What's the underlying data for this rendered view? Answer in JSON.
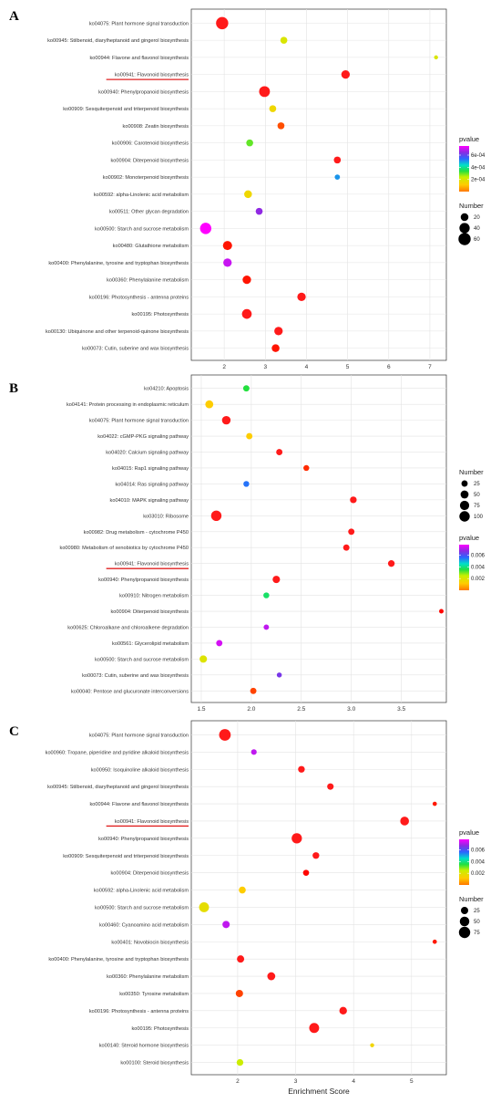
{
  "chart_data": [
    {
      "type": "scatter",
      "panel_label": "A",
      "xlabel": "",
      "ylabel": "",
      "xlim": [
        1.2,
        7.4
      ],
      "xticks": [
        2,
        3,
        4,
        5,
        6,
        7
      ],
      "highlighted_category": "ko00941: Flavonoid biosynthesis",
      "categories": [
        "ko04075: Plant hormone signal transduction",
        "ko00945: Stilbenoid, diarylheptanoid and gingerol biosynthesis",
        "ko00944: Flavone and flavonol biosynthesis",
        "ko00941: Flavonoid biosynthesis",
        "ko00940: Phenylpropanoid biosynthesis",
        "ko00909: Sesquiterpenoid and triterpenoid biosynthesis",
        "ko00908: Zeatin biosynthesis",
        "ko00906: Carotenoid biosynthesis",
        "ko00904: Diterpenoid biosynthesis",
        "ko00902: Monoterpenoid biosynthesis",
        "ko00592: alpha-Linolenic acid metabolism",
        "ko00511: Other glycan degradation",
        "ko00500: Starch and sucrose metabolism",
        "ko00480: Glutathione metabolism",
        "ko00400: Phenylalanine, tyrosine and tryptophan biosynthesis",
        "ko00360: Phenylalanine metabolism",
        "ko00196: Photosynthesis - antenna proteins",
        "ko00195: Photosynthesis",
        "ko00130: Ubiquinone and other terpenoid-quinone biosynthesis",
        "ko00073: Cutin, suberine and wax biosynthesis"
      ],
      "points": [
        {
          "x": 1.95,
          "number": 60,
          "pvalue": 0.0
        },
        {
          "x": 3.45,
          "number": 15,
          "pvalue": 0.0002
        },
        {
          "x": 7.15,
          "number": 3,
          "pvalue": 0.0002
        },
        {
          "x": 4.95,
          "number": 25,
          "pvalue": 0.0
        },
        {
          "x": 2.98,
          "number": 45,
          "pvalue": 0.0
        },
        {
          "x": 3.18,
          "number": 15,
          "pvalue": 0.00015
        },
        {
          "x": 3.38,
          "number": 15,
          "pvalue": 8e-05
        },
        {
          "x": 2.62,
          "number": 15,
          "pvalue": 0.0003
        },
        {
          "x": 4.75,
          "number": 15,
          "pvalue": 0.0
        },
        {
          "x": 4.75,
          "number": 7,
          "pvalue": 0.0005
        },
        {
          "x": 2.58,
          "number": 20,
          "pvalue": 0.00015
        },
        {
          "x": 2.85,
          "number": 15,
          "pvalue": 0.00065
        },
        {
          "x": 1.55,
          "number": 50,
          "pvalue": 0.00075
        },
        {
          "x": 2.08,
          "number": 30,
          "pvalue": 5e-05
        },
        {
          "x": 2.08,
          "number": 25,
          "pvalue": 0.0007
        },
        {
          "x": 2.55,
          "number": 25,
          "pvalue": 5e-05
        },
        {
          "x": 3.88,
          "number": 25,
          "pvalue": 0.0
        },
        {
          "x": 2.55,
          "number": 35,
          "pvalue": 0.0
        },
        {
          "x": 3.32,
          "number": 25,
          "pvalue": 0.0
        },
        {
          "x": 3.25,
          "number": 20,
          "pvalue": 5e-05
        }
      ],
      "color_legend": {
        "title": "pvalue",
        "ticks": [
          "6e-04",
          "4e-04",
          "2e-04"
        ],
        "tick_values": [
          0.0006,
          0.0004,
          0.0002
        ],
        "min": 0,
        "max": 0.00075
      },
      "size_legend": {
        "title": "Number",
        "labels": [
          "20",
          "40",
          "60"
        ],
        "values": [
          20,
          40,
          60
        ]
      }
    },
    {
      "type": "scatter",
      "panel_label": "B",
      "xlabel": "",
      "ylabel": "",
      "xlim": [
        1.4,
        3.95
      ],
      "xticks": [
        1.5,
        2.0,
        2.5,
        3.0,
        3.5
      ],
      "xtick_labels": [
        "1.5",
        "2.0",
        "2.5",
        "3.0",
        "3.5"
      ],
      "highlighted_category": "ko00941: Flavonoid biosynthesis",
      "categories": [
        "ko04210: Apoptosis",
        "ko04141: Protein processing in endoplasmic reticulum",
        "ko04075: Plant hormone signal transduction",
        "ko04022: cGMP-PKG signaling pathway",
        "ko04020: Calcium signaling pathway",
        "ko04015: Rap1 signaling pathway",
        "ko04014: Ras signaling pathway",
        "ko04010: MAPK signaling pathway",
        "ko03010: Ribosome",
        "ko00982: Drug metabolism - cytochrome P450",
        "ko00980: Metabolism of xenobiotics by cytochrome P450",
        "ko00941: Flavonoid biosynthesis",
        "ko00940: Phenylpropanoid biosynthesis",
        "ko00910: Nitrogen metabolism",
        "ko00904: Diterpenoid biosynthesis",
        "ko00625: Chloroalkane and chloroalkene degradation",
        "ko00561: Glycerolipid metabolism",
        "ko00500: Starch and sucrose metabolism",
        "ko00073: Cutin, suberine and wax biosynthesis",
        "ko00040: Pentose and glucuronate interconversions"
      ],
      "points": [
        {
          "x": 1.95,
          "number": 25,
          "pvalue": 0.0035
        },
        {
          "x": 1.58,
          "number": 50,
          "pvalue": 0.0012
        },
        {
          "x": 1.75,
          "number": 60,
          "pvalue": 0.0
        },
        {
          "x": 1.98,
          "number": 25,
          "pvalue": 0.0012
        },
        {
          "x": 2.28,
          "number": 25,
          "pvalue": 0.0002
        },
        {
          "x": 2.55,
          "number": 20,
          "pvalue": 0.0004
        },
        {
          "x": 1.95,
          "number": 20,
          "pvalue": 0.0055
        },
        {
          "x": 3.02,
          "number": 30,
          "pvalue": 0.0001
        },
        {
          "x": 1.65,
          "number": 100,
          "pvalue": 0.0
        },
        {
          "x": 3.0,
          "number": 25,
          "pvalue": 0.0001
        },
        {
          "x": 2.95,
          "number": 25,
          "pvalue": 0.0002
        },
        {
          "x": 3.4,
          "number": 30,
          "pvalue": 0.0
        },
        {
          "x": 2.25,
          "number": 40,
          "pvalue": 0.0
        },
        {
          "x": 2.15,
          "number": 20,
          "pvalue": 0.0038
        },
        {
          "x": 3.9,
          "number": 8,
          "pvalue": 0.0006
        },
        {
          "x": 2.15,
          "number": 15,
          "pvalue": 0.0072
        },
        {
          "x": 1.68,
          "number": 25,
          "pvalue": 0.0074
        },
        {
          "x": 1.52,
          "number": 40,
          "pvalue": 0.002
        },
        {
          "x": 2.28,
          "number": 12,
          "pvalue": 0.0065
        },
        {
          "x": 2.02,
          "number": 25,
          "pvalue": 0.0008
        }
      ],
      "color_legend": {
        "title": "pvalue",
        "ticks": [
          "0.006",
          "0.004",
          "0.002"
        ],
        "tick_values": [
          0.006,
          0.004,
          0.002
        ],
        "min": 0,
        "max": 0.0078
      },
      "size_legend": {
        "title": "Number",
        "labels": [
          "25",
          "50",
          "75",
          "100"
        ],
        "values": [
          25,
          50,
          75,
          100
        ]
      }
    },
    {
      "type": "scatter",
      "panel_label": "C",
      "xlabel": "Enrichment Score",
      "ylabel": "",
      "xlim": [
        1.2,
        5.6
      ],
      "xticks": [
        2,
        3,
        4,
        5
      ],
      "highlighted_category": "ko00941: Flavonoid biosynthesis",
      "categories": [
        "ko04075: Plant hormone signal transduction",
        "ko00960: Tropane, piperidine and pyridine alkaloid biosynthesis",
        "ko00950: Isoquinoline alkaloid biosynthesis",
        "ko00945: Stilbenoid, diarylheptanoid and gingerol biosynthesis",
        "ko00944: Flavone and flavonol biosynthesis",
        "ko00941: Flavonoid biosynthesis",
        "ko00940: Phenylpropanoid biosynthesis",
        "ko00909: Sesquiterpenoid and triterpenoid biosynthesis",
        "ko00904: Diterpenoid biosynthesis",
        "ko00592: alpha-Linolenic acid metabolism",
        "ko00500: Starch and sucrose metabolism",
        "ko00460: Cyanoamino acid metabolism",
        "ko00401: Novobiocin biosynthesis",
        "ko00400: Phenylalanine, tyrosine and tryptophan biosynthesis",
        "ko00360: Phenylalanine metabolism",
        "ko00350: Tyrosine metabolism",
        "ko00196: Photosynthesis - antenna proteins",
        "ko00195: Photosynthesis",
        "ko00140: Steroid hormone biosynthesis",
        "ko00100: Steroid biosynthesis"
      ],
      "points": [
        {
          "x": 1.78,
          "number": 80,
          "pvalue": 0.0
        },
        {
          "x": 2.28,
          "number": 12,
          "pvalue": 0.0072
        },
        {
          "x": 3.1,
          "number": 20,
          "pvalue": 0.0
        },
        {
          "x": 3.6,
          "number": 18,
          "pvalue": 0.0
        },
        {
          "x": 5.4,
          "number": 5,
          "pvalue": 0.0005
        },
        {
          "x": 4.88,
          "number": 40,
          "pvalue": 0.0
        },
        {
          "x": 3.02,
          "number": 60,
          "pvalue": 0.0
        },
        {
          "x": 3.35,
          "number": 20,
          "pvalue": 0.0
        },
        {
          "x": 3.18,
          "number": 15,
          "pvalue": 0.0006
        },
        {
          "x": 2.08,
          "number": 22,
          "pvalue": 0.0012
        },
        {
          "x": 1.42,
          "number": 55,
          "pvalue": 0.0018
        },
        {
          "x": 1.8,
          "number": 25,
          "pvalue": 0.0072
        },
        {
          "x": 5.4,
          "number": 5,
          "pvalue": 0.0005
        },
        {
          "x": 2.05,
          "number": 25,
          "pvalue": 0.0002
        },
        {
          "x": 2.58,
          "number": 32,
          "pvalue": 0.0
        },
        {
          "x": 2.03,
          "number": 25,
          "pvalue": 0.0008
        },
        {
          "x": 3.82,
          "number": 28,
          "pvalue": 0.0
        },
        {
          "x": 3.32,
          "number": 55,
          "pvalue": 0.0
        },
        {
          "x": 4.32,
          "number": 4,
          "pvalue": 0.0015
        },
        {
          "x": 2.04,
          "number": 20,
          "pvalue": 0.0024
        }
      ],
      "color_legend": {
        "title": "pvalue",
        "ticks": [
          "0.006",
          "0.004",
          "0.002"
        ],
        "tick_values": [
          0.006,
          0.004,
          0.002
        ],
        "min": 0,
        "max": 0.0078
      },
      "size_legend": {
        "title": "Number",
        "labels": [
          "25",
          "50",
          "75"
        ],
        "values": [
          25,
          50,
          75
        ]
      }
    }
  ]
}
